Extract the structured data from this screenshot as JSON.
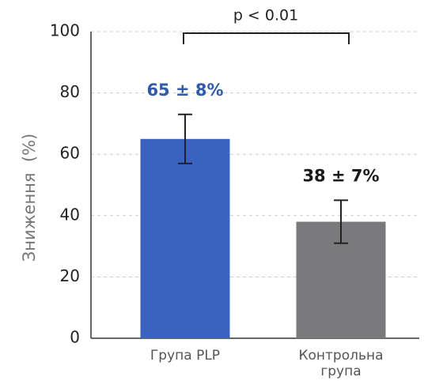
{
  "chart_data": {
    "type": "bar",
    "y_label": "Зниження  (%)",
    "categories": [
      "Група PLP",
      "Контрольна група"
    ],
    "values": [
      65,
      38
    ],
    "errors": [
      8,
      7
    ],
    "value_labels": [
      "65 ± 8%",
      "38 ± 7%"
    ],
    "colors": [
      "#3a63c0",
      "#7a7a7c"
    ],
    "value_label_colors": [
      "#2f5aad",
      "#1a1a1a"
    ],
    "annotation": "p < 0.01",
    "ylim": [
      0,
      100
    ],
    "yticks": [
      0,
      20,
      40,
      60,
      80,
      100
    ],
    "grid": true
  }
}
